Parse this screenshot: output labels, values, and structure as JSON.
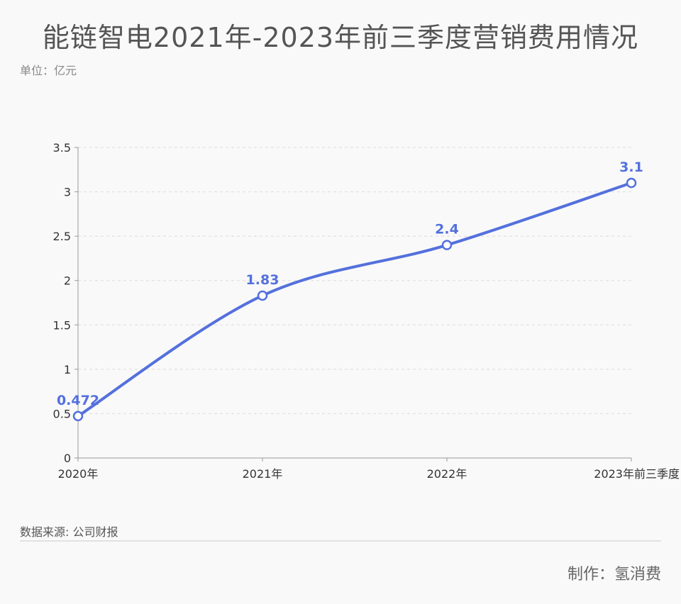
{
  "title": "能链智电2021年-2023年前三季度营销费用情况",
  "unit": "单位：亿元",
  "source": "数据来源: 公司财报",
  "credit": "制作：氢消费",
  "colors": {
    "line": "#5470dd",
    "label": "#5470dd",
    "grid": "#dcdcdc",
    "axis": "#999999"
  },
  "chart_data": {
    "type": "line",
    "categories": [
      "2020年",
      "2021年",
      "2022年",
      "2023年前三季度"
    ],
    "series": [
      {
        "values": [
          0.472,
          1.83,
          2.4,
          3.1
        ],
        "labels": [
          "0.472",
          "1.83",
          "2.4",
          "3.1"
        ]
      }
    ],
    "yticks": [
      "0",
      "0.5",
      "1",
      "1.5",
      "2",
      "2.5",
      "3",
      "3.5"
    ],
    "ylim": [
      0,
      3.5
    ],
    "grid": true,
    "smooth": true
  }
}
